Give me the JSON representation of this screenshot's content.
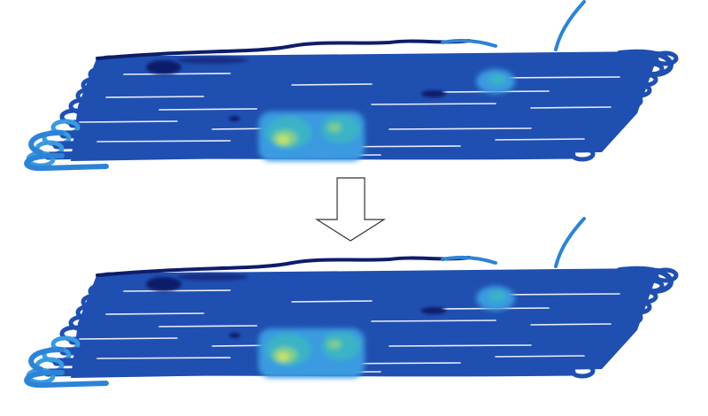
{
  "figure": {
    "panels": [
      {
        "id": "before",
        "description_visible": false
      },
      {
        "id": "after",
        "description_visible": false
      }
    ],
    "arrow": {
      "direction": "down",
      "icon": "down-arrow-icon"
    },
    "colors": {
      "track_base": "#1f4fb0",
      "track_dark": "#152f86",
      "track_navy": "#0e1d6a",
      "track_light": "#2d83d6",
      "track_edge": "#3a9ae0",
      "hot_mid": "#3bb3c6",
      "hot_green": "#7fcf8a",
      "hot_yellow": "#c7e36a",
      "gap_white": "#ffffff",
      "arrow_fill": "#ffffff",
      "arrow_stroke": "#333333"
    }
  }
}
